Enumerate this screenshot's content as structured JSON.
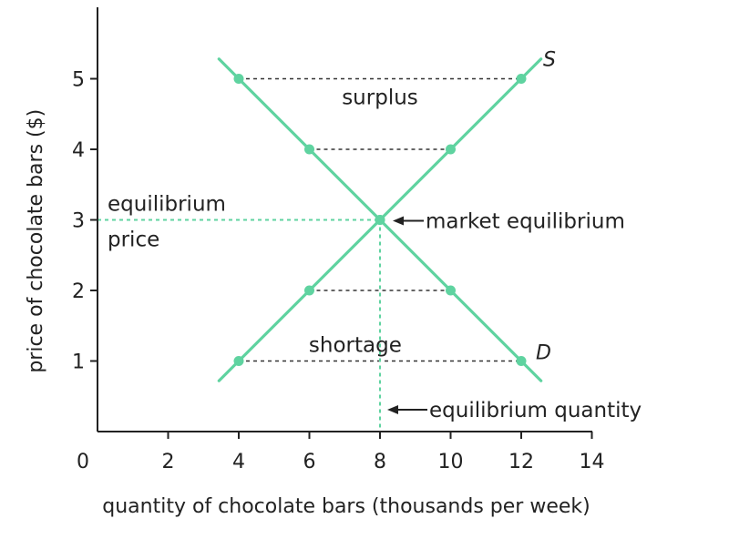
{
  "chart_data": {
    "type": "line",
    "xlabel": "quantity of chocolate bars (thousands per week)",
    "ylabel": "price of chocolate bars ($)",
    "xlim": [
      0,
      14
    ],
    "ylim": [
      0,
      5.8
    ],
    "x_ticks": [
      "0",
      "2",
      "4",
      "6",
      "8",
      "10",
      "12",
      "14"
    ],
    "y_ticks": [
      "1",
      "2",
      "3",
      "4",
      "5"
    ],
    "grid": false,
    "line_color": "#5fd3a0",
    "guide_color": "#333333",
    "series": [
      {
        "name": "S",
        "points": [
          [
            4,
            1
          ],
          [
            6,
            2
          ],
          [
            8,
            3
          ],
          [
            10,
            4
          ],
          [
            12,
            5
          ]
        ]
      },
      {
        "name": "D",
        "points": [
          [
            4,
            5
          ],
          [
            6,
            4
          ],
          [
            8,
            3
          ],
          [
            10,
            2
          ],
          [
            12,
            1
          ]
        ]
      }
    ],
    "gaps": [
      {
        "price": 5,
        "from": 4,
        "to": 12
      },
      {
        "price": 4,
        "from": 6,
        "to": 10
      },
      {
        "price": 2,
        "from": 6,
        "to": 10
      },
      {
        "price": 1,
        "from": 4,
        "to": 12
      }
    ],
    "equilibrium": {
      "x": 8,
      "y": 3
    },
    "annotations": {
      "surplus": "surplus",
      "shortage": "shortage",
      "equilibrium_price_line1": "equilibrium",
      "equilibrium_price_line2": "price",
      "market_equilibrium": "market equilibrium",
      "equilibrium_quantity": "equilibrium quantity"
    }
  }
}
